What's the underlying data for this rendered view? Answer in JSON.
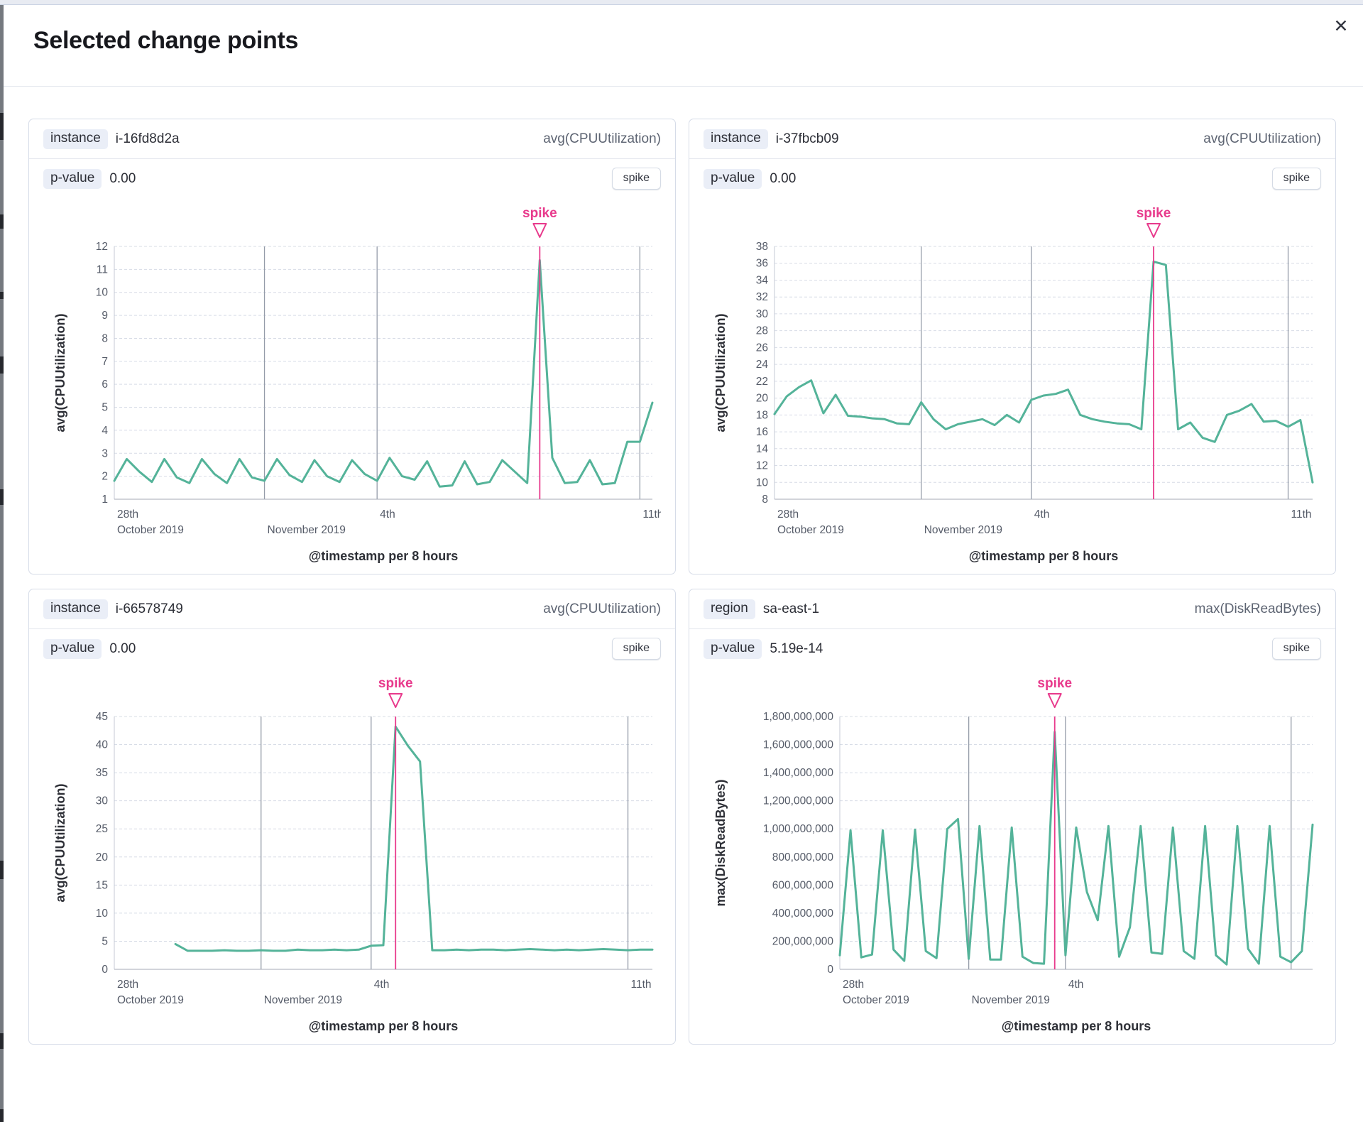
{
  "app": {
    "title": "Selected change points",
    "close_glyph": "✕"
  },
  "colors": {
    "line_green": "#54b399",
    "annotation_pink": "#e83a8c",
    "grid_dashed": "#d7dce6",
    "grid_date": "#959ca9",
    "axis_line": "#a4aab6",
    "tick_text": "#555b68",
    "axis_title_text": "#2e3037"
  },
  "panels": [
    {
      "field_label": "instance",
      "field_value": "i-16fd8d2a",
      "metric": "avg(CPUUtilization)",
      "p_label": "p-value",
      "p_value": "0.00",
      "change_type_button": "spike"
    },
    {
      "field_label": "instance",
      "field_value": "i-37fbcb09",
      "metric": "avg(CPUUtilization)",
      "p_label": "p-value",
      "p_value": "0.00",
      "change_type_button": "spike"
    },
    {
      "field_label": "instance",
      "field_value": "i-66578749",
      "metric": "avg(CPUUtilization)",
      "p_label": "p-value",
      "p_value": "0.00",
      "change_type_button": "spike"
    },
    {
      "field_label": "region",
      "field_value": "sa-east-1",
      "metric": "max(DiskReadBytes)",
      "p_label": "p-value",
      "p_value": "5.19e-14",
      "change_type_button": "spike"
    }
  ],
  "chart_data": [
    {
      "type": "line",
      "ylabel": "avg(CPUUtilization)",
      "xlabel": "@timestamp per 8 hours",
      "ylim": [
        1,
        12
      ],
      "ytick_step": 1,
      "ytick_format": "plain",
      "x_gridlines": [
        12,
        21,
        42
      ],
      "x_ticks": [
        {
          "index": 0,
          "line1": "28th",
          "line2": "October 2019"
        },
        {
          "index": 12,
          "line1": "",
          "line2": "November 2019"
        },
        {
          "index": 21,
          "line1": "4th",
          "line2": ""
        },
        {
          "index": 42,
          "line1": "11th",
          "line2": ""
        }
      ],
      "annotation": {
        "label": "spike",
        "index": 34
      },
      "values": [
        1.8,
        2.75,
        2.2,
        1.75,
        2.75,
        1.95,
        1.7,
        2.75,
        2.1,
        1.7,
        2.75,
        1.95,
        1.8,
        2.75,
        2.05,
        1.75,
        2.7,
        2.0,
        1.75,
        2.7,
        2.1,
        1.8,
        2.8,
        2.0,
        1.85,
        2.65,
        1.55,
        1.6,
        2.65,
        1.65,
        1.75,
        2.7,
        2.2,
        1.7,
        11.4,
        2.8,
        1.7,
        1.75,
        2.7,
        1.65,
        1.7,
        3.5,
        3.5,
        5.2
      ]
    },
    {
      "type": "line",
      "ylabel": "avg(CPUUtilization)",
      "xlabel": "@timestamp per 8 hours",
      "ylim": [
        8,
        38
      ],
      "ytick_step": 2,
      "ytick_format": "plain",
      "x_gridlines": [
        12,
        21,
        42
      ],
      "x_ticks": [
        {
          "index": 0,
          "line1": "28th",
          "line2": "October 2019"
        },
        {
          "index": 12,
          "line1": "",
          "line2": "November 2019"
        },
        {
          "index": 21,
          "line1": "4th",
          "line2": ""
        },
        {
          "index": 42,
          "line1": "11th",
          "line2": ""
        }
      ],
      "annotation": {
        "label": "spike",
        "index": 31
      },
      "values": [
        18.1,
        20.2,
        21.3,
        22.1,
        18.2,
        20.4,
        17.9,
        17.8,
        17.6,
        17.5,
        17.0,
        16.9,
        19.5,
        17.5,
        16.3,
        16.9,
        17.2,
        17.5,
        16.8,
        18.0,
        17.1,
        19.8,
        20.3,
        20.5,
        21.0,
        18.0,
        17.5,
        17.2,
        17.0,
        16.9,
        16.3,
        36.2,
        35.8,
        16.3,
        17.1,
        15.3,
        14.8,
        18.0,
        18.5,
        19.3,
        17.2,
        17.3,
        16.6,
        17.4,
        10.0
      ]
    },
    {
      "type": "line",
      "ylabel": "avg(CPUUtilization)",
      "xlabel": "@timestamp per 8 hours",
      "ylim": [
        0,
        45
      ],
      "ytick_step": 5,
      "ytick_format": "plain",
      "x_gridlines": [
        12,
        21,
        42
      ],
      "x_ticks": [
        {
          "index": 0,
          "line1": "28th",
          "line2": "October 2019"
        },
        {
          "index": 12,
          "line1": "",
          "line2": "November 2019"
        },
        {
          "index": 21,
          "line1": "4th",
          "line2": ""
        },
        {
          "index": 42,
          "line1": "11th",
          "line2": ""
        }
      ],
      "annotation": {
        "label": "spike",
        "index": 23
      },
      "values": [
        null,
        null,
        null,
        null,
        null,
        4.5,
        3.3,
        3.3,
        3.3,
        3.4,
        3.3,
        3.3,
        3.4,
        3.3,
        3.3,
        3.5,
        3.4,
        3.4,
        3.5,
        3.4,
        3.5,
        4.2,
        4.3,
        43.2,
        39.8,
        37.0,
        3.4,
        3.4,
        3.5,
        3.4,
        3.5,
        3.5,
        3.4,
        3.5,
        3.6,
        3.5,
        3.4,
        3.5,
        3.4,
        3.5,
        3.6,
        3.5,
        3.4,
        3.5,
        3.5
      ]
    },
    {
      "type": "line",
      "ylabel": "max(DiskReadBytes)",
      "xlabel": "@timestamp per 8 hours",
      "ylim": [
        0,
        1800000000
      ],
      "ytick_step": 200000000,
      "ytick_format": "comma",
      "x_gridlines": [
        12,
        21,
        42
      ],
      "x_ticks": [
        {
          "index": 0,
          "line1": "28th",
          "line2": "October 2019"
        },
        {
          "index": 12,
          "line1": "",
          "line2": "November 2019"
        },
        {
          "index": 21,
          "line1": "4th",
          "line2": ""
        }
      ],
      "annotation": {
        "label": "spike",
        "index": 20
      },
      "values": [
        100000000,
        990000000,
        85000000,
        105000000,
        990000000,
        140000000,
        60000000,
        995000000,
        130000000,
        80000000,
        1000000000,
        1070000000,
        75000000,
        1020000000,
        70000000,
        70000000,
        1010000000,
        90000000,
        45000000,
        40000000,
        1690000000,
        100000000,
        1010000000,
        550000000,
        350000000,
        1020000000,
        90000000,
        300000000,
        1020000000,
        120000000,
        110000000,
        1010000000,
        130000000,
        75000000,
        1020000000,
        100000000,
        35000000,
        1020000000,
        145000000,
        40000000,
        1020000000,
        90000000,
        50000000,
        130000000,
        1030000000
      ]
    }
  ]
}
